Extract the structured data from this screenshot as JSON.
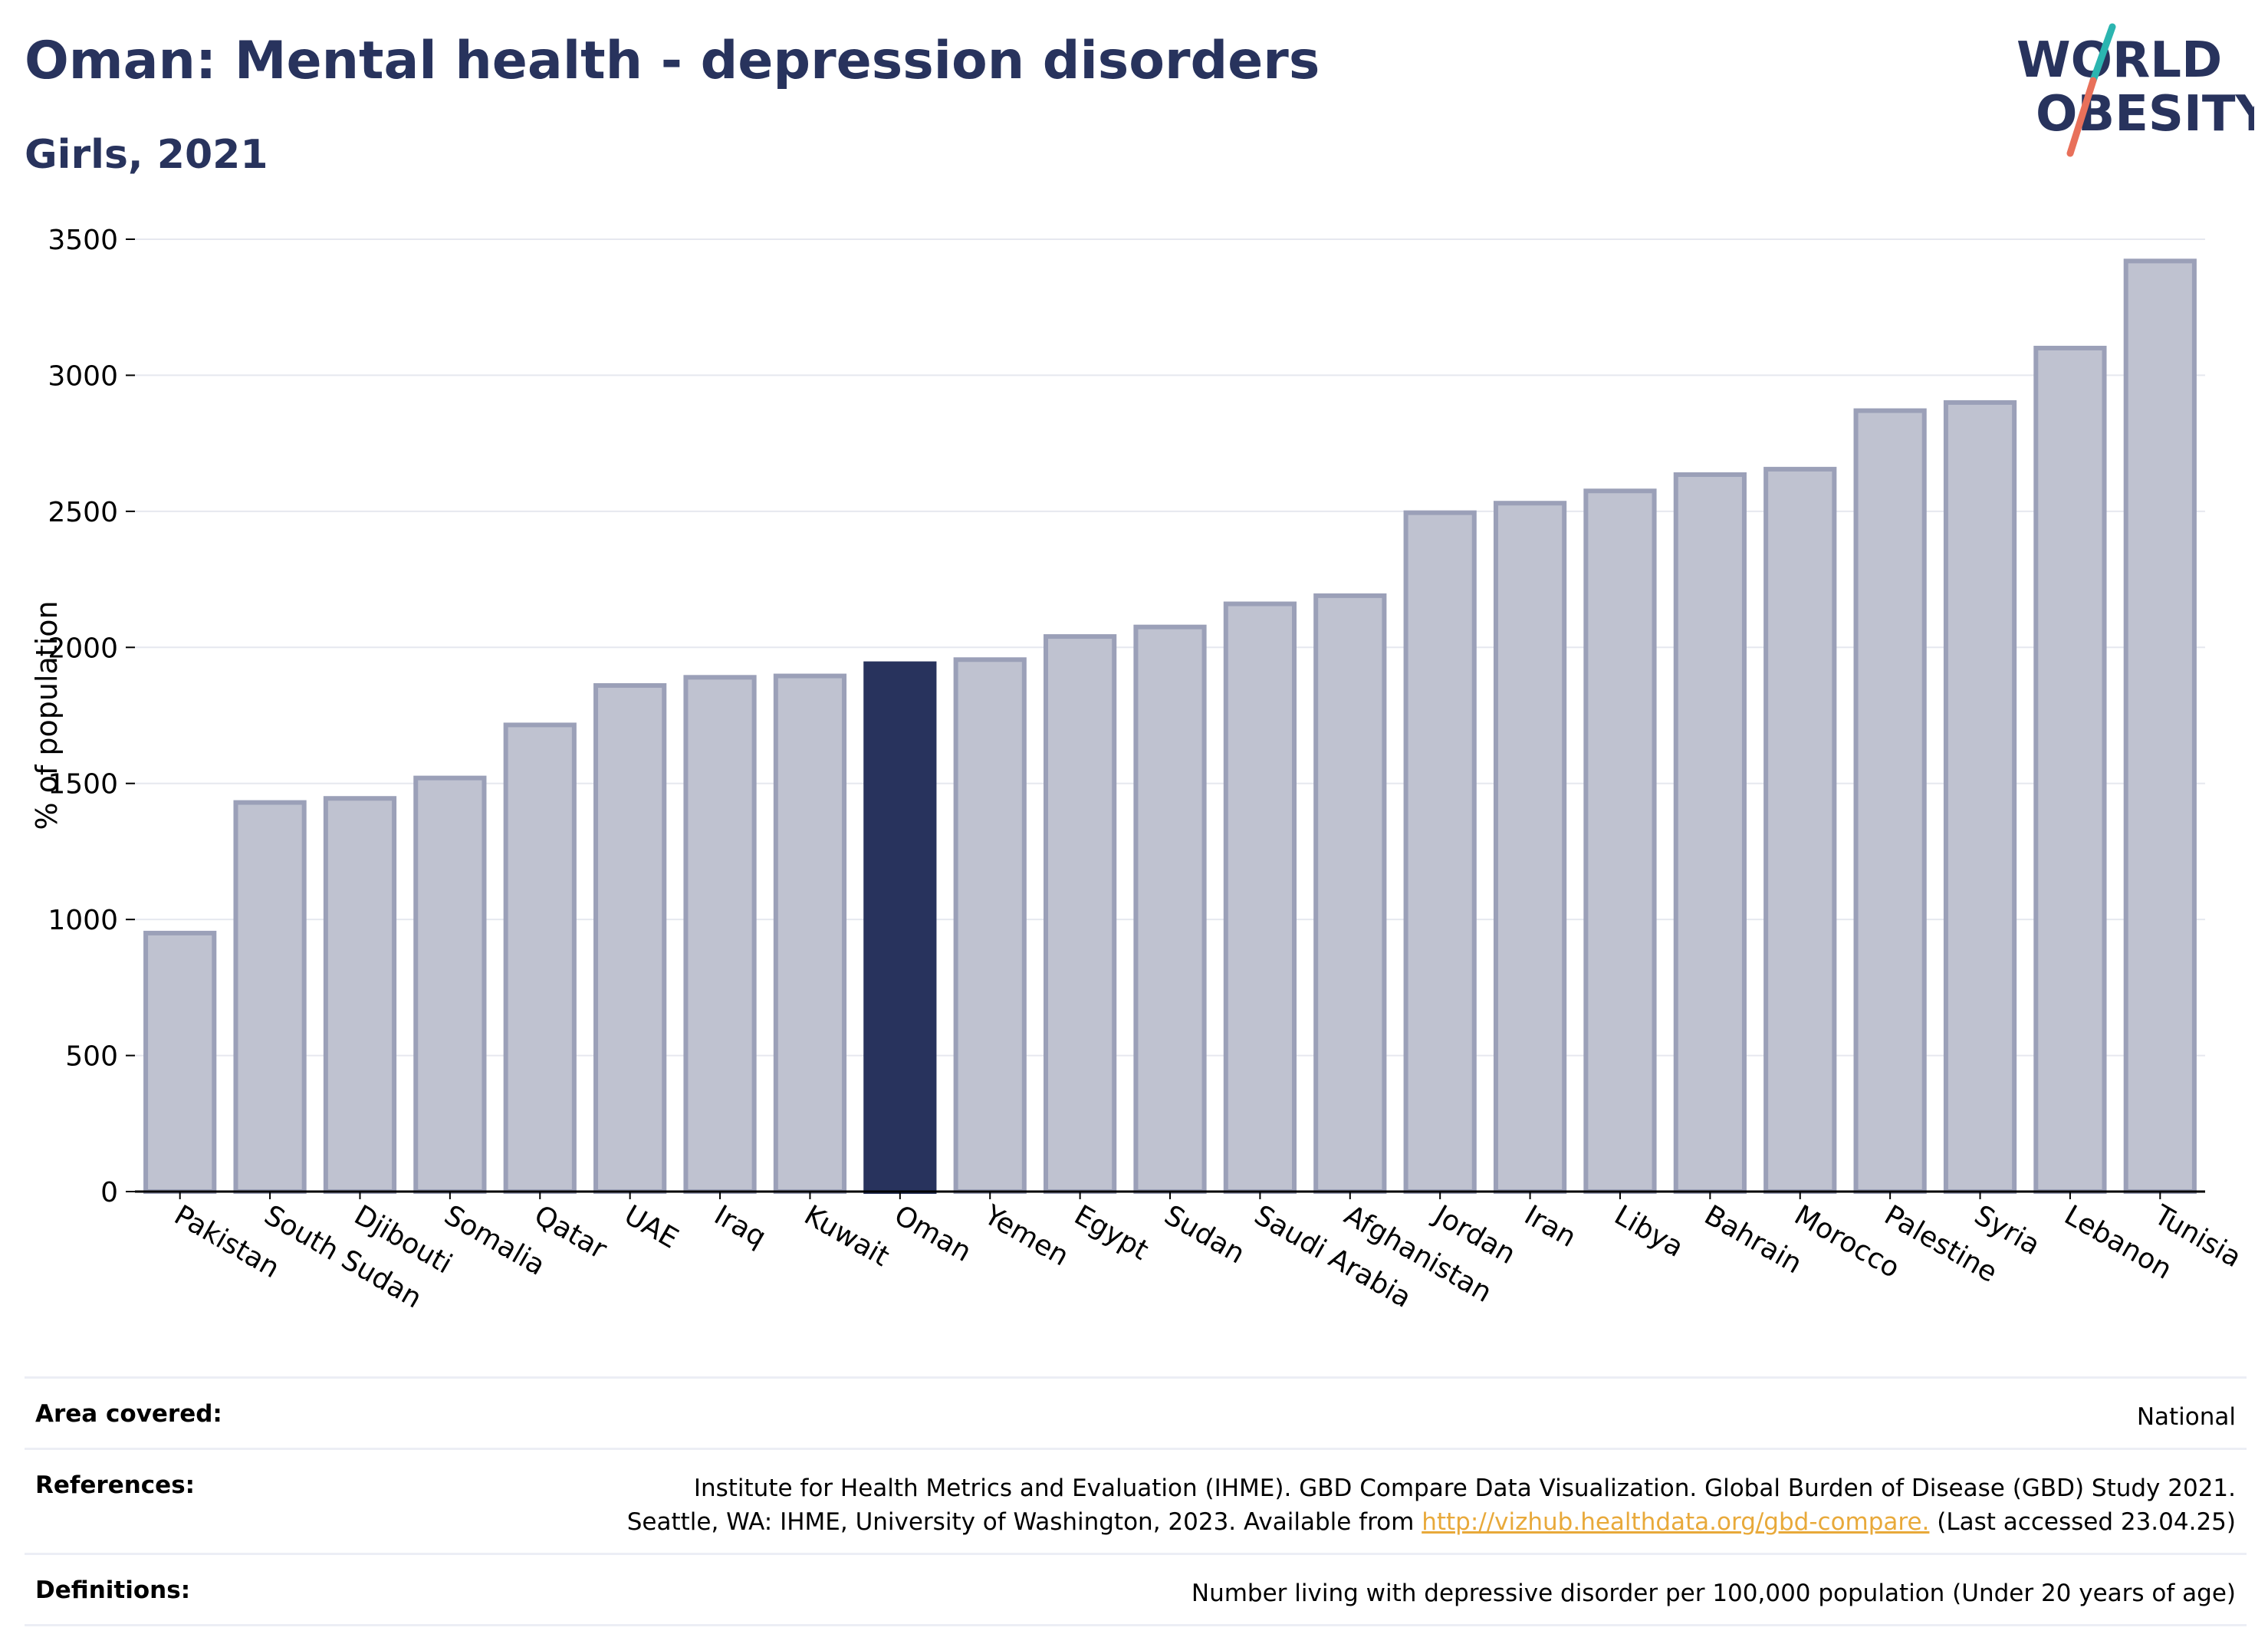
{
  "header": {
    "title": "Oman: Mental health - depression disorders",
    "subtitle": "Girls, 2021"
  },
  "logo": {
    "line1": "WORLD",
    "line2": "OBESITY",
    "color_text": "#28335d",
    "color_slash_top": "#2bb5b0",
    "color_slash_bottom": "#e8705a"
  },
  "chart_data": {
    "type": "bar",
    "title": "Oman: Mental health - depression disorders",
    "subtitle": "Girls, 2021",
    "ylabel": "% of population",
    "xlabel": "",
    "ylim": [
      0,
      3500
    ],
    "yticks": [
      0,
      500,
      1000,
      1500,
      2000,
      2500,
      3000,
      3500
    ],
    "grid": true,
    "highlight": "Oman",
    "colors": {
      "bar": "#bfc2d0",
      "bar_border": "#9ba0b8",
      "highlight": "#28335d"
    },
    "categories": [
      "Pakistan",
      "South Sudan",
      "Djibouti",
      "Somalia",
      "Qatar",
      "UAE",
      "Iraq",
      "Kuwait",
      "Oman",
      "Yemen",
      "Egypt",
      "Sudan",
      "Saudi Arabia",
      "Afghanistan",
      "Jordan",
      "Iran",
      "Libya",
      "Bahrain",
      "Morocco",
      "Palestine",
      "Syria",
      "Lebanon",
      "Tunisia"
    ],
    "values": [
      950,
      1430,
      1445,
      1520,
      1715,
      1860,
      1890,
      1895,
      1940,
      1955,
      2040,
      2075,
      2160,
      2190,
      2495,
      2530,
      2575,
      2635,
      2655,
      2870,
      2900,
      3100,
      3420
    ]
  },
  "info": {
    "area": {
      "label": "Area covered:",
      "value": "National"
    },
    "references": {
      "label": "References:",
      "line1": "Institute for Health Metrics and Evaluation (IHME). GBD Compare Data Visualization. Global Burden of Disease (GBD) Study 2021.",
      "line2_pre": "Seattle, WA: IHME, University of Washington, 2023. Available from ",
      "link": "http://vizhub.healthdata.org/gbd-compare.",
      "line2_post": " (Last accessed 23.04.25)"
    },
    "definitions": {
      "label": "Definitions:",
      "value": "Number living with depressive disorder per 100,000 population (Under 20 years of age)"
    }
  }
}
